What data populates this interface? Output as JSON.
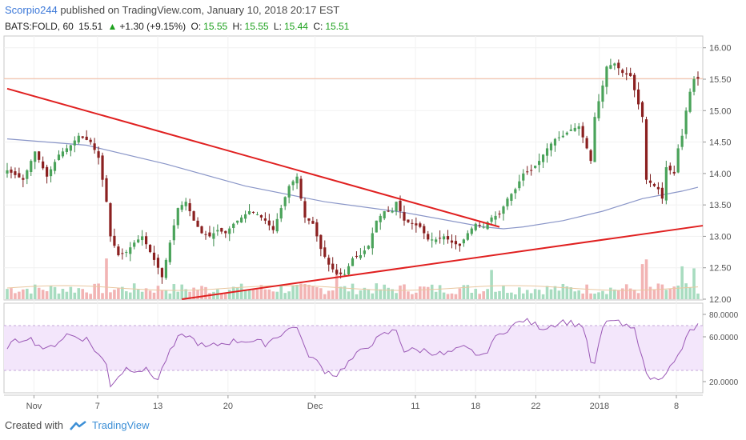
{
  "header": {
    "author": "Scorpio244",
    "published_text": "published on TradingView.com, January 10, 2018 20:17 EST",
    "symbol": "BATS:FOLD, 60",
    "last": "15.51",
    "change_text": "+1.30 (+9.15%)",
    "open_label": "O:",
    "open": "15.55",
    "high_label": "H:",
    "high": "15.55",
    "low_label": "L:",
    "low": "15.44",
    "close_label": "C:",
    "close": "15.51"
  },
  "footer": {
    "created_with": "Created with",
    "brand": "TradingView"
  },
  "colors": {
    "up": "#26a69a",
    "down": "#c0392b",
    "candle_up": "#3a8a4a",
    "candle_down": "#7a1e1e",
    "trendline": "#e02020",
    "ma": "#8a96c8",
    "last_price_line": "#f4b9a0",
    "vol_up": "#a8dcc0",
    "vol_down": "#f2b4b4",
    "vol_ma": "#e9c7a0",
    "rsi_line": "#9b59b6",
    "rsi_band": "#f3e6fb"
  },
  "chart_data": [
    {
      "type": "candlestick",
      "name": "price",
      "ylim": [
        12.0,
        16.2
      ],
      "y_ticks": [
        "16.00",
        "15.50",
        "15.00",
        "14.50",
        "14.00",
        "13.50",
        "13.00",
        "12.50",
        "12.00"
      ],
      "x_ticks": [
        "Nov",
        "7",
        "13",
        "20",
        "Dec",
        "11",
        "18",
        "22",
        "2018",
        "8"
      ],
      "last_price": 15.51,
      "close_path": [
        [
          0,
          14.05
        ],
        [
          4,
          13.9
        ],
        [
          7,
          14.35
        ],
        [
          10,
          13.95
        ],
        [
          13,
          14.3
        ],
        [
          16,
          14.45
        ],
        [
          18,
          14.6
        ],
        [
          21,
          14.5
        ],
        [
          23,
          14.25
        ],
        [
          25,
          13.55
        ],
        [
          26,
          13.0
        ],
        [
          28,
          12.7
        ],
        [
          30,
          12.75
        ],
        [
          32,
          12.9
        ],
        [
          34,
          13.0
        ],
        [
          36,
          12.75
        ],
        [
          38,
          12.5
        ],
        [
          39,
          12.35
        ],
        [
          41,
          12.9
        ],
        [
          43,
          13.45
        ],
        [
          45,
          13.55
        ],
        [
          47,
          13.25
        ],
        [
          49,
          13.05
        ],
        [
          51,
          13.0
        ],
        [
          53,
          13.1
        ],
        [
          55,
          13.05
        ],
        [
          57,
          13.2
        ],
        [
          59,
          13.3
        ],
        [
          61,
          13.4
        ],
        [
          63,
          13.35
        ],
        [
          65,
          13.25
        ],
        [
          67,
          13.1
        ],
        [
          69,
          13.45
        ],
        [
          71,
          13.8
        ],
        [
          73,
          13.95
        ],
        [
          74,
          13.6
        ],
        [
          75,
          13.3
        ],
        [
          77,
          13.2
        ],
        [
          79,
          12.8
        ],
        [
          81,
          12.55
        ],
        [
          83,
          12.4
        ],
        [
          85,
          12.4
        ],
        [
          87,
          12.65
        ],
        [
          89,
          12.7
        ],
        [
          91,
          12.85
        ],
        [
          93,
          13.25
        ],
        [
          95,
          13.4
        ],
        [
          97,
          13.4
        ],
        [
          98,
          13.55
        ],
        [
          100,
          13.25
        ],
        [
          102,
          13.2
        ],
        [
          104,
          13.15
        ],
        [
          106,
          12.95
        ],
        [
          108,
          12.95
        ],
        [
          110,
          13.0
        ],
        [
          112,
          12.9
        ],
        [
          114,
          12.85
        ],
        [
          116,
          13.05
        ],
        [
          118,
          13.2
        ],
        [
          120,
          13.15
        ],
        [
          122,
          13.3
        ],
        [
          124,
          13.35
        ],
        [
          126,
          13.6
        ],
        [
          128,
          13.75
        ],
        [
          130,
          14.0
        ],
        [
          132,
          14.05
        ],
        [
          134,
          14.2
        ],
        [
          136,
          14.4
        ],
        [
          138,
          14.55
        ],
        [
          140,
          14.6
        ],
        [
          142,
          14.7
        ],
        [
          144,
          14.75
        ],
        [
          146,
          14.4
        ],
        [
          147,
          14.2
        ],
        [
          148,
          14.9
        ],
        [
          150,
          15.4
        ],
        [
          151,
          15.7
        ],
        [
          153,
          15.75
        ],
        [
          155,
          15.6
        ],
        [
          157,
          15.55
        ],
        [
          159,
          15.1
        ],
        [
          160,
          14.9
        ],
        [
          161,
          13.9
        ],
        [
          162,
          13.85
        ],
        [
          164,
          13.75
        ],
        [
          165,
          13.6
        ],
        [
          166,
          14.1
        ],
        [
          168,
          14.0
        ],
        [
          169,
          14.4
        ],
        [
          170,
          14.6
        ],
        [
          171,
          15.0
        ],
        [
          172,
          15.3
        ],
        [
          173,
          15.5
        ],
        [
          174,
          15.51
        ]
      ],
      "overlays": [
        {
          "kind": "moving-average",
          "path": [
            [
              0,
              14.55
            ],
            [
              20,
              14.45
            ],
            [
              40,
              14.15
            ],
            [
              60,
              13.8
            ],
            [
              80,
              13.55
            ],
            [
              100,
              13.38
            ],
            [
              120,
              13.15
            ],
            [
              125,
              13.12
            ],
            [
              130,
              13.15
            ],
            [
              140,
              13.25
            ],
            [
              150,
              13.4
            ],
            [
              160,
              13.6
            ],
            [
              170,
              13.72
            ],
            [
              174,
              13.78
            ]
          ]
        },
        {
          "kind": "trendline",
          "from": [
            0,
            15.35
          ],
          "to": [
            124,
            13.15
          ]
        },
        {
          "kind": "trendline",
          "from": [
            44,
            12.0
          ],
          "to": [
            174,
            13.17
          ]
        }
      ]
    },
    {
      "type": "bar",
      "name": "volume",
      "note_units": "relative"
    },
    {
      "type": "line",
      "name": "rsi",
      "ylim": [
        10,
        90
      ],
      "y_ticks": [
        "80.0000",
        "60.0000",
        "20.0000"
      ],
      "band": [
        30,
        70
      ],
      "path": [
        [
          0,
          52
        ],
        [
          5,
          60
        ],
        [
          10,
          48
        ],
        [
          15,
          62
        ],
        [
          20,
          58
        ],
        [
          25,
          35
        ],
        [
          26,
          17
        ],
        [
          28,
          25
        ],
        [
          30,
          32
        ],
        [
          35,
          30
        ],
        [
          38,
          22
        ],
        [
          40,
          40
        ],
        [
          43,
          58
        ],
        [
          45,
          62
        ],
        [
          50,
          50
        ],
        [
          55,
          55
        ],
        [
          60,
          57
        ],
        [
          65,
          54
        ],
        [
          70,
          65
        ],
        [
          73,
          70
        ],
        [
          75,
          48
        ],
        [
          80,
          30
        ],
        [
          83,
          26
        ],
        [
          85,
          34
        ],
        [
          90,
          50
        ],
        [
          95,
          62
        ],
        [
          98,
          66
        ],
        [
          100,
          48
        ],
        [
          105,
          48
        ],
        [
          110,
          44
        ],
        [
          115,
          50
        ],
        [
          120,
          42
        ],
        [
          122,
          55
        ],
        [
          125,
          65
        ],
        [
          130,
          75
        ],
        [
          135,
          68
        ],
        [
          140,
          74
        ],
        [
          145,
          70
        ],
        [
          147,
          38
        ],
        [
          148,
          35
        ],
        [
          150,
          68
        ],
        [
          152,
          76
        ],
        [
          155,
          70
        ],
        [
          158,
          66
        ],
        [
          160,
          44
        ],
        [
          161,
          25
        ],
        [
          163,
          22
        ],
        [
          165,
          26
        ],
        [
          168,
          36
        ],
        [
          170,
          50
        ],
        [
          172,
          65
        ],
        [
          174,
          70
        ]
      ]
    }
  ]
}
